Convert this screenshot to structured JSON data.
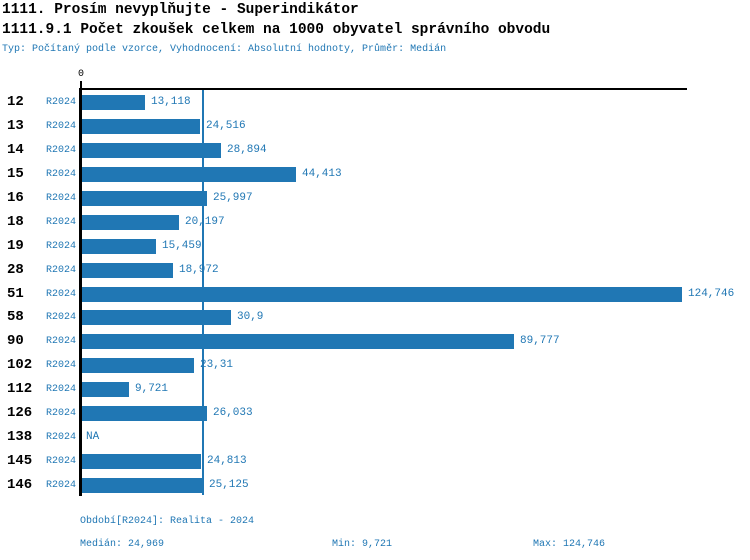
{
  "header": {
    "title_line1": "1111. Prosím nevyplňujte - Superindikátor",
    "title_line2": "1111.9.1 Počet zkoušek celkem na 1000 obyvatel správního obvodu",
    "meta_line": "Typ: Počítaný podle vzorce, Vyhodnocení: Absolutní hodnoty, Průměr: Medián"
  },
  "chart_data": {
    "type": "bar",
    "orientation": "horizontal",
    "title": "1111.9.1 Počet zkoušek celkem na 1000 obyvatel správního obvodu",
    "series_label": "R2024",
    "x_axis": {
      "zero_label": "0",
      "min": 0,
      "max_visible": 126,
      "grid": false
    },
    "median_line_value": 24.969,
    "categories": [
      "12",
      "13",
      "14",
      "15",
      "16",
      "18",
      "19",
      "28",
      "51",
      "58",
      "90",
      "102",
      "112",
      "126",
      "138",
      "145",
      "146"
    ],
    "rows": [
      {
        "category": "12",
        "period": "R2024",
        "value": 13.118,
        "value_label": "13,118"
      },
      {
        "category": "13",
        "period": "R2024",
        "value": 24.516,
        "value_label": "24,516"
      },
      {
        "category": "14",
        "period": "R2024",
        "value": 28.894,
        "value_label": "28,894"
      },
      {
        "category": "15",
        "period": "R2024",
        "value": 44.413,
        "value_label": "44,413"
      },
      {
        "category": "16",
        "period": "R2024",
        "value": 25.997,
        "value_label": "25,997"
      },
      {
        "category": "18",
        "period": "R2024",
        "value": 20.197,
        "value_label": "20,197"
      },
      {
        "category": "19",
        "period": "R2024",
        "value": 15.459,
        "value_label": "15,459"
      },
      {
        "category": "28",
        "period": "R2024",
        "value": 18.972,
        "value_label": "18,972"
      },
      {
        "category": "51",
        "period": "R2024",
        "value": 124.746,
        "value_label": "124,746"
      },
      {
        "category": "58",
        "period": "R2024",
        "value": 30.9,
        "value_label": "30,9"
      },
      {
        "category": "90",
        "period": "R2024",
        "value": 89.777,
        "value_label": "89,777"
      },
      {
        "category": "102",
        "period": "R2024",
        "value": 23.31,
        "value_label": "23,31"
      },
      {
        "category": "112",
        "period": "R2024",
        "value": 9.721,
        "value_label": "9,721"
      },
      {
        "category": "126",
        "period": "R2024",
        "value": 26.033,
        "value_label": "26,033"
      },
      {
        "category": "138",
        "period": "R2024",
        "value": null,
        "value_label": "NA"
      },
      {
        "category": "145",
        "period": "R2024",
        "value": 24.813,
        "value_label": "24,813"
      },
      {
        "category": "146",
        "period": "R2024",
        "value": 25.125,
        "value_label": "25,125"
      }
    ],
    "colors": {
      "bar": "#2077b4",
      "blue_text": "#2077b4",
      "axis": "#000000"
    },
    "stats": {
      "median": 24.969,
      "min": 9.721,
      "max": 124.746
    }
  },
  "footer": {
    "period_line": "Období[R2024]: Realita - 2024",
    "median_label": "Medián: 24,969",
    "min_label": "Min: 9,721",
    "max_label": "Max: 124,746"
  }
}
